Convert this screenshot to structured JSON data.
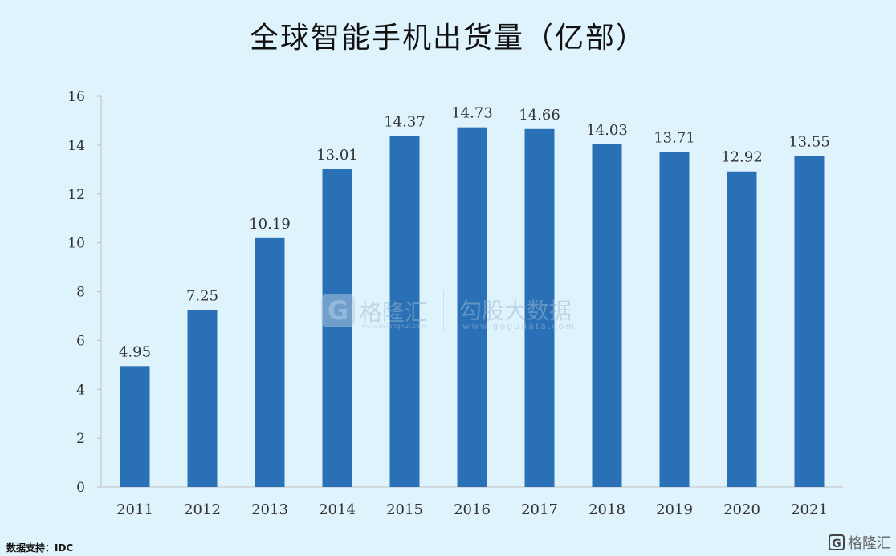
{
  "title": "全球智能手机出货量（亿部）",
  "source": "数据支持：IDC",
  "watermark": {
    "logo_letter": "G",
    "brand": "格隆汇",
    "brand2": "勾股大数据",
    "url": "www.gogudata.com",
    "url_small": "www.gelonghui.com"
  },
  "corner_logo": {
    "icon": "G",
    "text": "格隆汇"
  },
  "colors": {
    "background": "#dff3fd",
    "bar": "#2970b6",
    "axis": "#bfbfbf"
  },
  "chart_data": {
    "type": "bar",
    "title": "全球智能手机出货量（亿部）",
    "xlabel": "",
    "ylabel": "",
    "categories": [
      "2011",
      "2012",
      "2013",
      "2014",
      "2015",
      "2016",
      "2017",
      "2018",
      "2019",
      "2020",
      "2021"
    ],
    "values": [
      4.95,
      7.25,
      10.19,
      13.01,
      14.37,
      14.73,
      14.66,
      14.03,
      13.71,
      12.92,
      13.55
    ],
    "value_labels": [
      "4.95",
      "7.25",
      "10.19",
      "13.01",
      "14.37",
      "14.73",
      "14.66",
      "14.03",
      "13.71",
      "12.92",
      "13.55"
    ],
    "ylim": [
      0,
      16
    ],
    "yticks": [
      0,
      2,
      4,
      6,
      8,
      10,
      12,
      14,
      16
    ],
    "grid": false,
    "legend": "none"
  }
}
